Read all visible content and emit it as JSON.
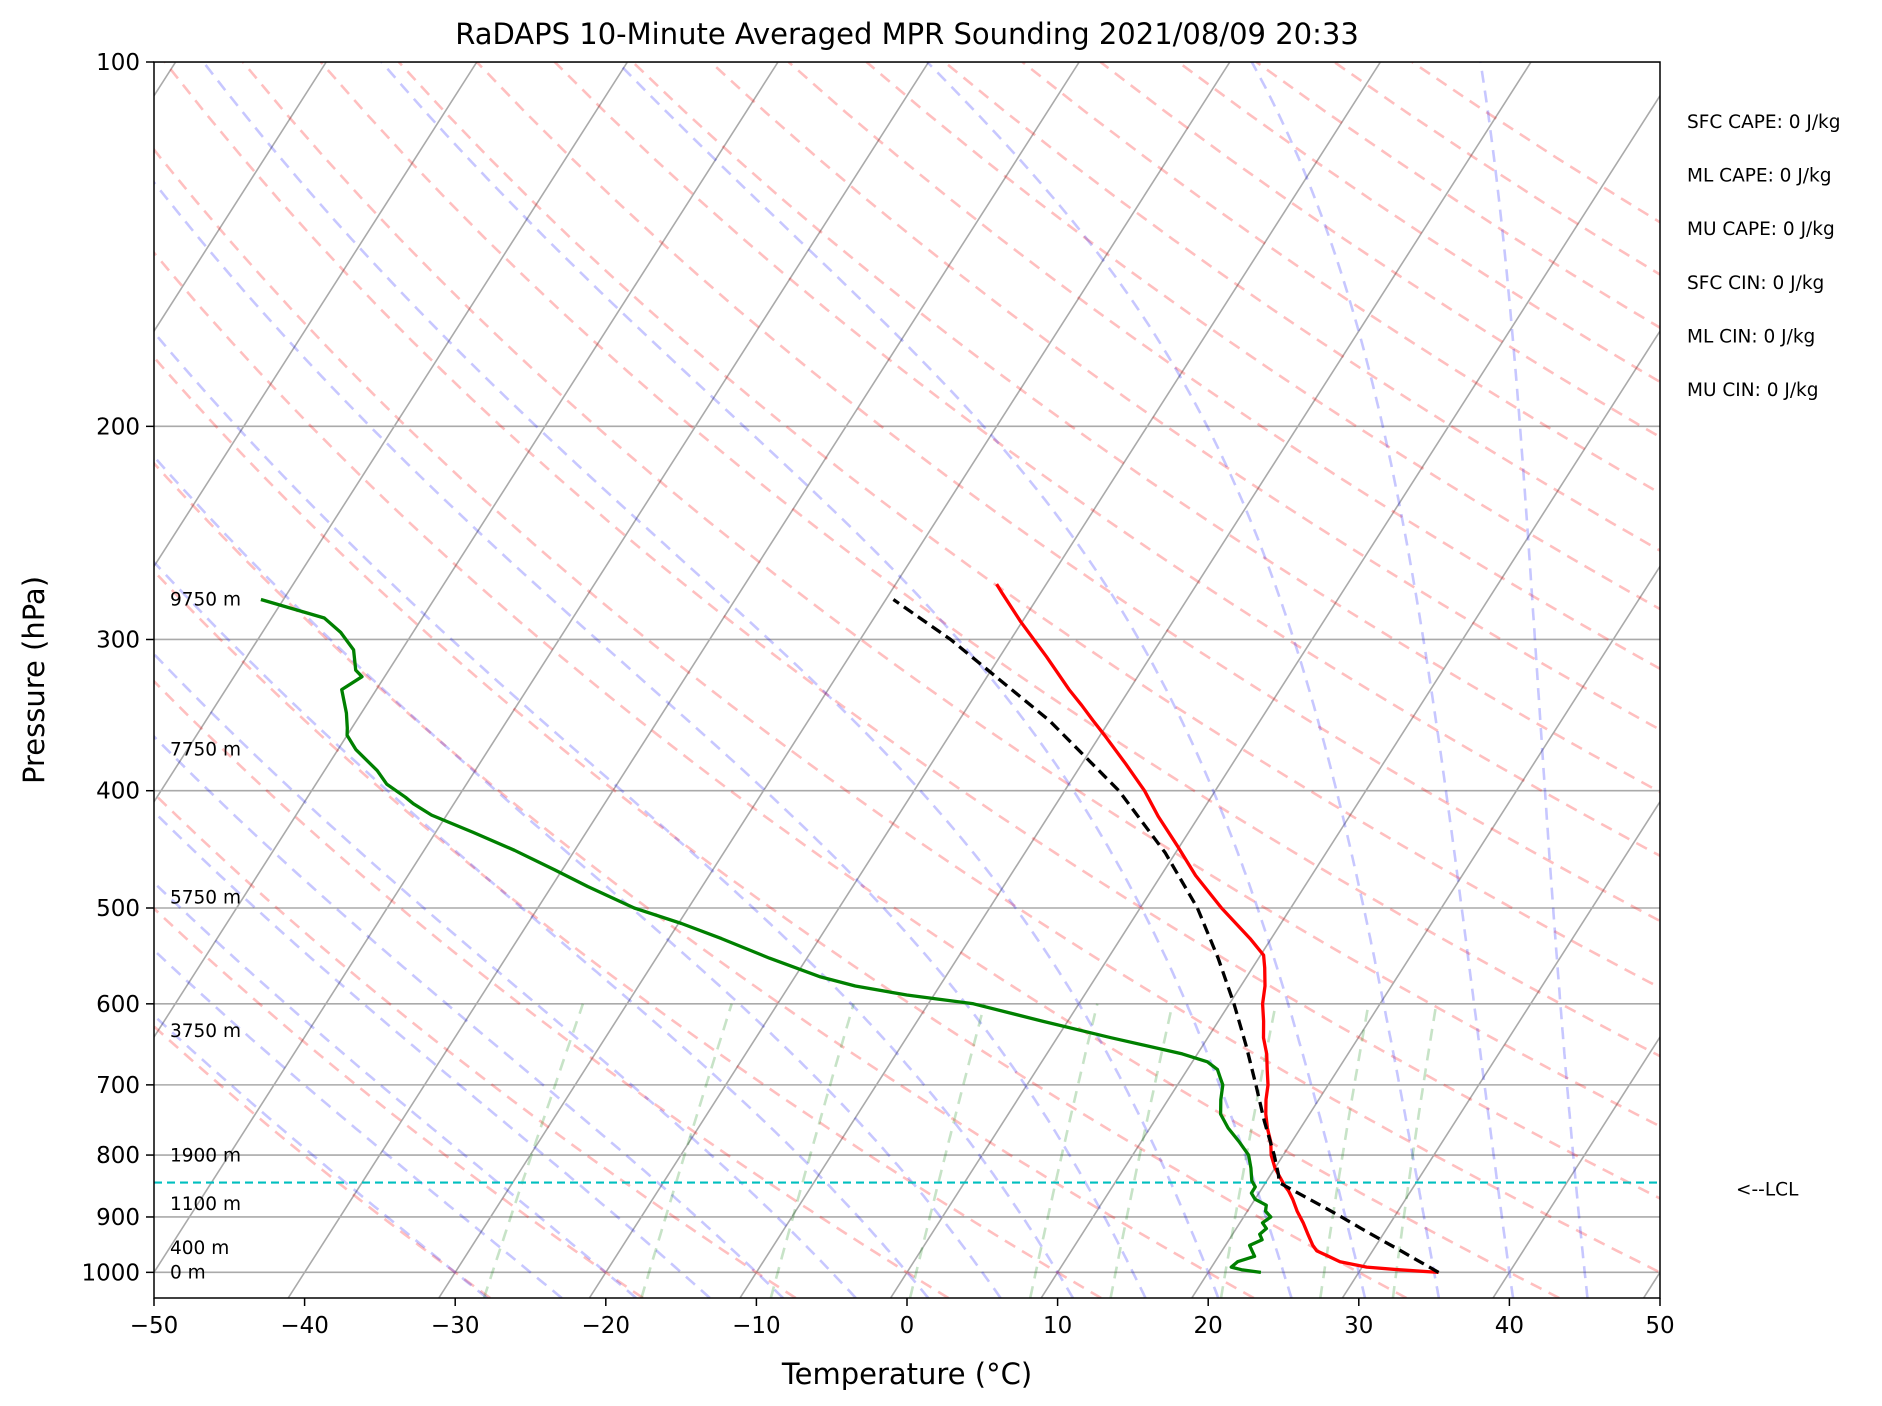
{
  "chart_data": {
    "type": "line",
    "title": "RaDAPS 10-Minute Averaged MPR Sounding 2021/08/09 20:33",
    "xlabel": "Temperature (°C)",
    "ylabel": "Pressure (hPa)",
    "x_scale": "skew-t",
    "y_scale": "log",
    "xlim": [
      -50,
      50
    ],
    "ylim": [
      1050,
      100
    ],
    "x_ticks": [
      -50,
      -40,
      -30,
      -20,
      -10,
      0,
      10,
      20,
      30,
      40,
      50
    ],
    "y_ticks": [
      100,
      200,
      300,
      400,
      500,
      600,
      700,
      800,
      900,
      1000
    ],
    "grid": true,
    "series": [
      {
        "color": "#ff0000",
        "points": [
          [
            1000,
            35.3
          ],
          [
            995,
            32.5
          ],
          [
            990,
            30.3
          ],
          [
            980,
            28.3
          ],
          [
            970,
            27.3
          ],
          [
            960,
            26.3
          ],
          [
            950,
            25.8
          ],
          [
            930,
            25.0
          ],
          [
            910,
            24.2
          ],
          [
            890,
            23.3
          ],
          [
            870,
            22.5
          ],
          [
            857,
            21.9
          ],
          [
            850,
            21.5
          ],
          [
            840,
            21.0
          ],
          [
            830,
            20.5
          ],
          [
            820,
            20.0
          ],
          [
            800,
            19.2
          ],
          [
            780,
            18.6
          ],
          [
            760,
            17.8
          ],
          [
            740,
            17.1
          ],
          [
            720,
            16.5
          ],
          [
            700,
            16.0
          ],
          [
            680,
            15.3
          ],
          [
            660,
            14.6
          ],
          [
            640,
            13.7
          ],
          [
            620,
            13.0
          ],
          [
            600,
            12.2
          ],
          [
            580,
            11.6
          ],
          [
            560,
            10.8
          ],
          [
            547,
            10.2
          ],
          [
            530,
            8.6
          ],
          [
            500,
            5.4
          ],
          [
            470,
            2.3
          ],
          [
            445,
            -0.1
          ],
          [
            420,
            -2.7
          ],
          [
            400,
            -4.7
          ],
          [
            380,
            -7.1
          ],
          [
            360,
            -9.7
          ],
          [
            350,
            -11.1
          ],
          [
            340,
            -12.5
          ],
          [
            330,
            -14.0
          ],
          [
            310,
            -16.9
          ],
          [
            290,
            -20.1
          ],
          [
            275,
            -22.5
          ],
          [
            270,
            -23.3
          ]
        ]
      },
      {
        "color": "#008000",
        "points": [
          [
            1000,
            23.5
          ],
          [
            995,
            22.1
          ],
          [
            990,
            21.3
          ],
          [
            980,
            21.5
          ],
          [
            970,
            22.4
          ],
          [
            960,
            22.0
          ],
          [
            950,
            21.6
          ],
          [
            940,
            22.2
          ],
          [
            930,
            21.8
          ],
          [
            920,
            22.0
          ],
          [
            910,
            21.5
          ],
          [
            900,
            21.8
          ],
          [
            890,
            21.2
          ],
          [
            880,
            21.0
          ],
          [
            870,
            20.0
          ],
          [
            860,
            19.5
          ],
          [
            850,
            19.5
          ],
          [
            840,
            19.0
          ],
          [
            820,
            18.4
          ],
          [
            800,
            17.7
          ],
          [
            780,
            16.5
          ],
          [
            760,
            15.2
          ],
          [
            740,
            14.1
          ],
          [
            720,
            13.5
          ],
          [
            700,
            13.0
          ],
          [
            690,
            12.5
          ],
          [
            680,
            12.0
          ],
          [
            670,
            11.0
          ],
          [
            660,
            9.0
          ],
          [
            640,
            3.6
          ],
          [
            620,
            -1.7
          ],
          [
            600,
            -7.0
          ],
          [
            590,
            -11.8
          ],
          [
            580,
            -15.6
          ],
          [
            570,
            -18.3
          ],
          [
            550,
            -22.5
          ],
          [
            530,
            -26.5
          ],
          [
            515,
            -29.8
          ],
          [
            500,
            -33.6
          ],
          [
            480,
            -37.6
          ],
          [
            465,
            -40.5
          ],
          [
            448,
            -44.0
          ],
          [
            433,
            -47.5
          ],
          [
            419,
            -51.0
          ],
          [
            410,
            -52.7
          ],
          [
            405,
            -53.5
          ],
          [
            395,
            -55.3
          ],
          [
            385,
            -56.5
          ],
          [
            370,
            -58.8
          ],
          [
            360,
            -60.0
          ],
          [
            355,
            -60.3
          ],
          [
            345,
            -61.0
          ],
          [
            330,
            -62.3
          ],
          [
            322,
            -61.5
          ],
          [
            318,
            -62.2
          ],
          [
            306,
            -63.2
          ],
          [
            296,
            -64.8
          ],
          [
            288,
            -66.5
          ],
          [
            278,
            -71.5
          ]
        ]
      },
      {
        "color": "#000000",
        "dashed": true,
        "points": [
          [
            1000,
            35.3
          ],
          [
            980,
            33.6
          ],
          [
            960,
            31.9
          ],
          [
            940,
            30.1
          ],
          [
            920,
            28.3
          ],
          [
            900,
            26.5
          ],
          [
            880,
            24.6
          ],
          [
            860,
            22.6
          ],
          [
            843,
            20.9
          ],
          [
            830,
            20.5
          ],
          [
            800,
            19.4
          ],
          [
            750,
            17.3
          ],
          [
            700,
            15.2
          ],
          [
            650,
            12.9
          ],
          [
            600,
            10.3
          ],
          [
            550,
            7.3
          ],
          [
            500,
            3.8
          ],
          [
            450,
            -0.7
          ],
          [
            400,
            -6.4
          ],
          [
            350,
            -14.0
          ],
          [
            300,
            -24.0
          ],
          [
            278,
            -29.5
          ]
        ]
      }
    ],
    "lcl_pressure": 843,
    "lcl_label": "<--LCL",
    "height_labels": [
      {
        "text": "0 m",
        "p": 1000
      },
      {
        "text": "400 m",
        "p": 955
      },
      {
        "text": "1100 m",
        "p": 878
      },
      {
        "text": "1900 m",
        "p": 801
      },
      {
        "text": "3750 m",
        "p": 632
      },
      {
        "text": "5750 m",
        "p": 490
      },
      {
        "text": "7750 m",
        "p": 370
      },
      {
        "text": "9750 m",
        "p": 278
      }
    ],
    "annotations": [
      "SFC CAPE: 0 J/kg",
      "ML CAPE: 0 J/kg",
      "MU CAPE: 0 J/kg",
      "SFC CIN: 0 J/kg",
      "ML CIN: 0 J/kg",
      "MU CIN: 0 J/kg"
    ]
  }
}
